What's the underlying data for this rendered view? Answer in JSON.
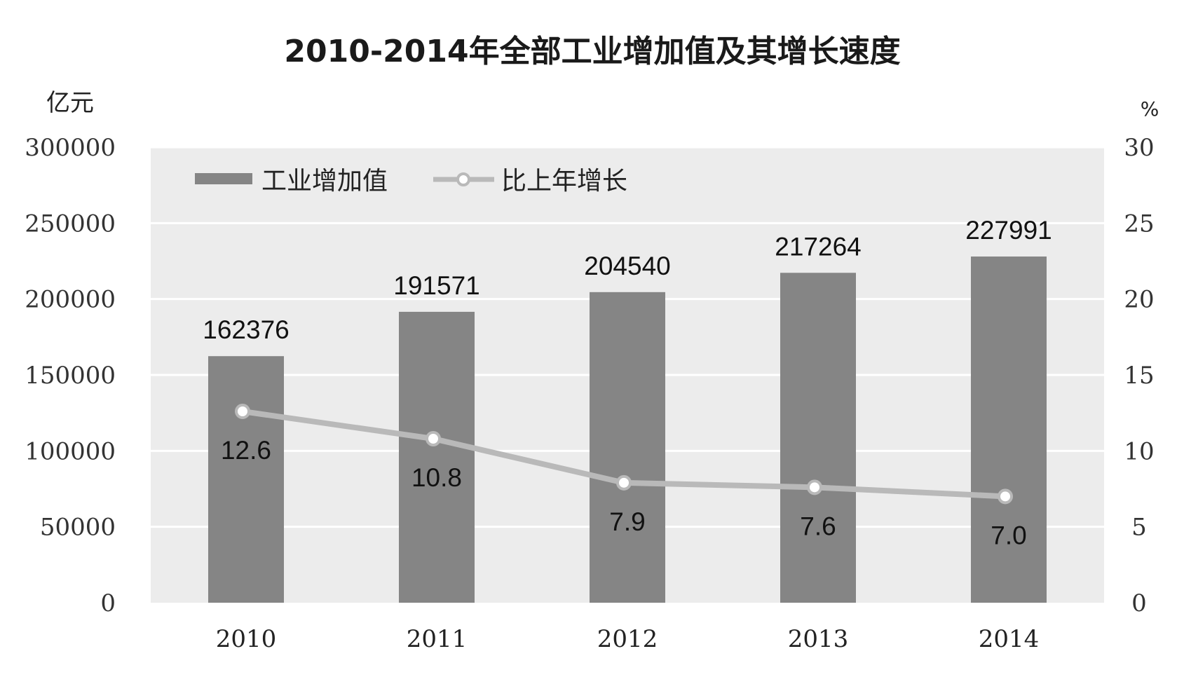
{
  "chart_data": {
    "type": "bar",
    "title": "2010-2014年全部工业增加值及其增长速度",
    "left_unit": "亿元",
    "right_unit": "%",
    "categories": [
      "2010",
      "2011",
      "2012",
      "2013",
      "2014"
    ],
    "series": [
      {
        "name": "工业增加值",
        "type": "bar",
        "axis": "left",
        "values": [
          162376,
          191571,
          204540,
          217264,
          227991
        ],
        "labels": [
          "162376",
          "191571",
          "204540",
          "217264",
          "227991"
        ]
      },
      {
        "name": "比上年增长",
        "type": "line",
        "axis": "right",
        "values": [
          12.6,
          10.8,
          7.9,
          7.6,
          7.0
        ],
        "labels": [
          "12.6",
          "10.8",
          "7.9",
          "7.6",
          "7.0"
        ]
      }
    ],
    "left_axis": {
      "ylim": [
        0,
        300000
      ],
      "ticks": [
        "0",
        "50000",
        "100000",
        "150000",
        "200000",
        "250000",
        "300000"
      ]
    },
    "right_axis": {
      "ylim": [
        0,
        30
      ],
      "ticks": [
        "0",
        "5",
        "10",
        "15",
        "20",
        "25",
        "30"
      ]
    },
    "grid": true,
    "legend_position": "top-left",
    "colors": {
      "bar": "#858585",
      "line": "#b9b9b9",
      "plot_bg": "#ececec",
      "grid": "#ffffff"
    }
  }
}
